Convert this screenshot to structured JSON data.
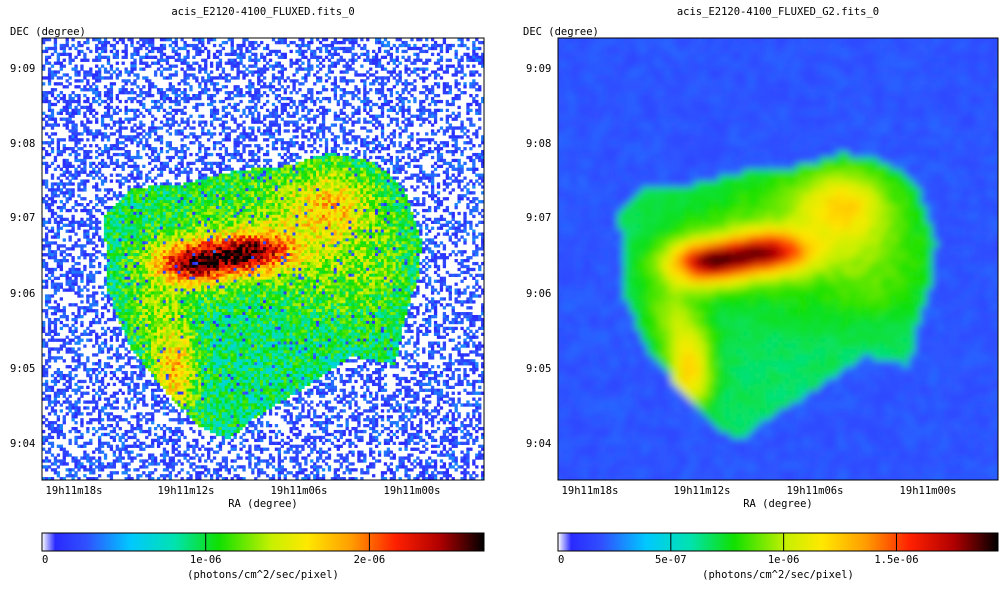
{
  "chart_data": [
    {
      "type": "heatmap",
      "title": "acis_E2120-4100_FLUXED.fits_0",
      "xlabel": "RA (degree)",
      "ylabel": "DEC (degree)",
      "x_ticks": [
        "19h11m18s",
        "19h11m12s",
        "19h11m06s",
        "19h11m00s"
      ],
      "y_ticks": [
        "9:09",
        "9:08",
        "9:07",
        "9:06",
        "9:05",
        "9:04"
      ],
      "colorbar": {
        "label": "(photons/cm^2/sec/pixel)",
        "ticks": [
          {
            "value": 0,
            "label": "0"
          },
          {
            "value": 1e-06,
            "label": "1e-06"
          },
          {
            "value": 2e-06,
            "label": "2e-06"
          }
        ],
        "range": [
          0,
          2.7e-06
        ]
      },
      "smoothed": false
    },
    {
      "type": "heatmap",
      "title": "acis_E2120-4100_FLUXED_G2.fits_0",
      "xlabel": "RA (degree)",
      "ylabel": "DEC (degree)",
      "x_ticks": [
        "19h11m18s",
        "19h11m12s",
        "19h11m06s",
        "19h11m00s"
      ],
      "y_ticks": [
        "9:09",
        "9:08",
        "9:07",
        "9:06",
        "9:05",
        "9:04"
      ],
      "colorbar": {
        "label": "(photons/cm^2/sec/pixel)",
        "ticks": [
          {
            "value": 0,
            "label": "0"
          },
          {
            "value": 5e-07,
            "label": "5e-07"
          },
          {
            "value": 1e-06,
            "label": "1e-06"
          },
          {
            "value": 1.5e-06,
            "label": "1.5e-06"
          }
        ],
        "range": [
          0,
          1.95e-06
        ]
      },
      "smoothed": true
    }
  ]
}
